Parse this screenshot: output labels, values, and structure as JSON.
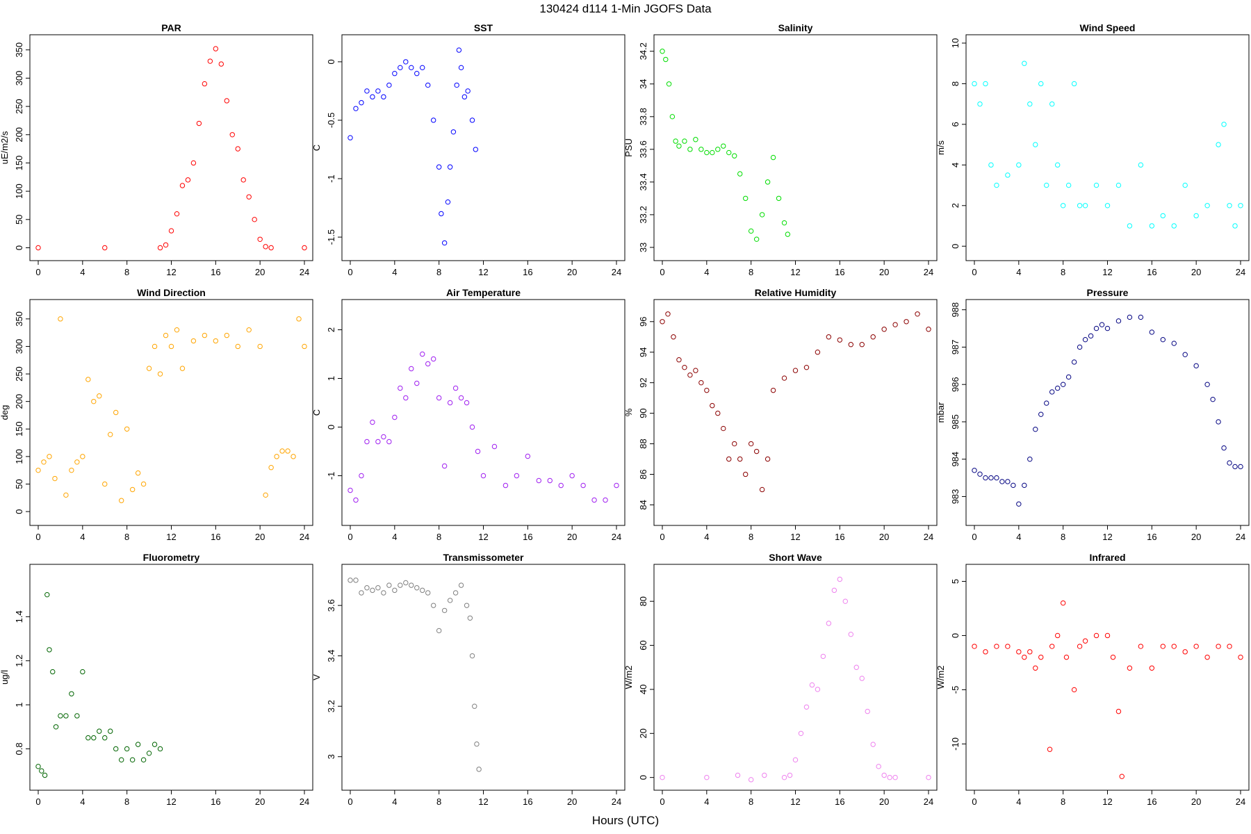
{
  "figure": {
    "title": "130424   d114   1-Min  JGOFS Data",
    "xlabel": "Hours (UTC)"
  },
  "chart_data": [
    {
      "type": "scatter",
      "title": "PAR",
      "ylabel": "uE/m2/s",
      "color": "#ff0000",
      "xlim": [
        0,
        24
      ],
      "ylim": [
        -8,
        362
      ],
      "xticks": [
        0,
        4,
        8,
        12,
        16,
        20,
        24
      ],
      "yticks": [
        0,
        50,
        100,
        150,
        200,
        250,
        300,
        350
      ],
      "x": [
        0,
        6,
        11,
        11.5,
        12,
        12.5,
        13,
        13.5,
        14,
        14.5,
        15,
        15.5,
        16,
        16.5,
        17,
        17.5,
        18,
        18.5,
        19,
        19.5,
        20,
        20.5,
        21,
        24
      ],
      "y": [
        0,
        0,
        0,
        5,
        30,
        60,
        110,
        120,
        150,
        220,
        290,
        330,
        352,
        325,
        260,
        200,
        175,
        120,
        90,
        50,
        15,
        2,
        0,
        0
      ]
    },
    {
      "type": "scatter",
      "title": "SST",
      "ylabel": "C",
      "color": "#0000ff",
      "xlim": [
        0,
        24
      ],
      "ylim": [
        -1.63,
        0.16
      ],
      "xticks": [
        0,
        4,
        8,
        12,
        16,
        20,
        24
      ],
      "yticks": [
        -1.5,
        -1.0,
        -0.5,
        0.0
      ],
      "x": [
        0,
        0.5,
        1,
        1.5,
        2,
        2.5,
        3,
        3.5,
        4,
        4.5,
        5,
        5.5,
        6,
        6.5,
        7,
        7.5,
        8,
        8.2,
        8.5,
        8.8,
        9,
        9.3,
        9.6,
        9.8,
        10,
        10.3,
        10.6,
        11,
        11.3
      ],
      "y": [
        -0.65,
        -0.4,
        -0.35,
        -0.25,
        -0.3,
        -0.25,
        -0.3,
        -0.2,
        -0.1,
        -0.05,
        0.0,
        -0.05,
        -0.1,
        -0.05,
        -0.2,
        -0.5,
        -0.9,
        -1.3,
        -1.55,
        -1.2,
        -0.9,
        -0.6,
        -0.2,
        0.1,
        -0.05,
        -0.3,
        -0.25,
        -0.5,
        -0.75
      ]
    },
    {
      "type": "scatter",
      "title": "Salinity",
      "ylabel": "PSU",
      "color": "#00dd00",
      "xlim": [
        0,
        24
      ],
      "ylim": [
        32.97,
        34.25
      ],
      "xticks": [
        0,
        4,
        8,
        12,
        16,
        20,
        24
      ],
      "yticks": [
        33.0,
        33.2,
        33.4,
        33.6,
        33.8,
        34.0,
        34.2
      ],
      "x": [
        0,
        0.3,
        0.6,
        0.9,
        1.2,
        1.5,
        2,
        2.5,
        3,
        3.5,
        4,
        4.5,
        5,
        5.5,
        6,
        6.5,
        7,
        7.5,
        8,
        8.5,
        9,
        9.5,
        10,
        10.5,
        11,
        11.3
      ],
      "y": [
        34.2,
        34.15,
        34.0,
        33.8,
        33.65,
        33.62,
        33.65,
        33.6,
        33.66,
        33.6,
        33.58,
        33.58,
        33.6,
        33.62,
        33.58,
        33.56,
        33.45,
        33.3,
        33.1,
        33.05,
        33.2,
        33.4,
        33.55,
        33.3,
        33.15,
        33.08
      ]
    },
    {
      "type": "scatter",
      "title": "Wind Speed",
      "ylabel": "m/s",
      "color": "#00ffff",
      "xlim": [
        0,
        24
      ],
      "ylim": [
        -0.3,
        10
      ],
      "xticks": [
        0,
        4,
        8,
        12,
        16,
        20,
        24
      ],
      "yticks": [
        0,
        2,
        4,
        6,
        8,
        10
      ],
      "x": [
        0,
        0.5,
        1,
        1.5,
        2,
        3,
        4,
        4.5,
        5,
        5.5,
        6,
        6.5,
        7,
        7.5,
        8,
        8.5,
        9,
        9.5,
        10,
        11,
        12,
        13,
        14,
        15,
        16,
        17,
        18,
        19,
        20,
        21,
        22,
        22.5,
        23,
        23.5,
        24
      ],
      "y": [
        8,
        7,
        8,
        4,
        3,
        3.5,
        4,
        9,
        7,
        5,
        8,
        3,
        7,
        4,
        2,
        3,
        8,
        2,
        2,
        3,
        2,
        3,
        1,
        4,
        1,
        1.5,
        1,
        3,
        1.5,
        2,
        5,
        6,
        2,
        1,
        2
      ]
    },
    {
      "type": "scatter",
      "title": "Wind Direction",
      "ylabel": "deg",
      "color": "#ffa500",
      "xlim": [
        0,
        24
      ],
      "ylim": [
        -10,
        370
      ],
      "xticks": [
        0,
        4,
        8,
        12,
        16,
        20,
        24
      ],
      "yticks": [
        0,
        50,
        100,
        150,
        200,
        250,
        300,
        350
      ],
      "x": [
        0,
        0.5,
        1,
        1.5,
        2,
        2.5,
        3,
        3.5,
        4,
        4.5,
        5,
        5.5,
        6,
        6.5,
        7,
        7.5,
        8,
        8.5,
        9,
        9.5,
        10,
        10.5,
        11,
        11.5,
        12,
        12.5,
        13,
        14,
        15,
        16,
        17,
        18,
        19,
        20,
        20.5,
        21,
        21.5,
        22,
        22.5,
        23,
        23.5,
        24
      ],
      "y": [
        75,
        90,
        100,
        60,
        350,
        30,
        75,
        90,
        100,
        240,
        200,
        210,
        50,
        140,
        180,
        20,
        150,
        40,
        70,
        50,
        260,
        300,
        250,
        320,
        300,
        330,
        260,
        310,
        320,
        310,
        320,
        300,
        330,
        300,
        30,
        80,
        100,
        110,
        110,
        100,
        350,
        300
      ]
    },
    {
      "type": "scatter",
      "title": "Air Temperature",
      "ylabel": "C",
      "color": "#a020f0",
      "xlim": [
        0,
        24
      ],
      "ylim": [
        -1.85,
        2.45
      ],
      "xticks": [
        0,
        4,
        8,
        12,
        16,
        20,
        24
      ],
      "yticks": [
        -1,
        0,
        1,
        2
      ],
      "x": [
        0,
        0.5,
        1,
        1.5,
        2,
        2.5,
        3,
        3.5,
        4,
        4.5,
        5,
        5.5,
        6,
        6.5,
        7,
        7.5,
        8,
        8.5,
        9,
        9.5,
        10,
        10.5,
        11,
        11.5,
        12,
        13,
        14,
        15,
        16,
        17,
        18,
        19,
        20,
        21,
        22,
        23,
        24
      ],
      "y": [
        -1.3,
        -1.5,
        -1.0,
        -0.3,
        0.1,
        -0.3,
        -0.2,
        -0.3,
        0.2,
        0.8,
        0.6,
        1.2,
        0.9,
        1.5,
        1.3,
        1.4,
        0.6,
        -0.8,
        0.5,
        0.8,
        0.6,
        0.5,
        0.0,
        -0.5,
        -1.0,
        -0.4,
        -1.2,
        -1.0,
        -0.6,
        -1.1,
        -1.1,
        -1.2,
        -1.0,
        -1.2,
        -1.5,
        -1.5,
        -1.2
      ]
    },
    {
      "type": "scatter",
      "title": "Relative Humidity",
      "ylabel": "%",
      "color": "#8b0000",
      "xlim": [
        0,
        24
      ],
      "ylim": [
        83.2,
        96.9
      ],
      "xticks": [
        0,
        4,
        8,
        12,
        16,
        20,
        24
      ],
      "yticks": [
        84,
        86,
        88,
        90,
        92,
        94,
        96
      ],
      "x": [
        0,
        0.5,
        1,
        1.5,
        2,
        2.5,
        3,
        3.5,
        4,
        4.5,
        5,
        5.5,
        6,
        6.5,
        7,
        7.5,
        8,
        8.5,
        9,
        9.5,
        10,
        11,
        12,
        13,
        14,
        15,
        16,
        17,
        18,
        19,
        20,
        21,
        22,
        23,
        24
      ],
      "y": [
        96,
        96.5,
        95,
        93.5,
        93,
        92.5,
        92.8,
        92,
        91.5,
        90.5,
        90,
        89,
        87,
        88,
        87,
        86,
        88,
        87.5,
        85,
        87,
        91.5,
        92.3,
        92.8,
        93,
        94,
        95,
        94.8,
        94.5,
        94.5,
        95,
        95.5,
        95.8,
        96,
        96.5,
        95.5
      ]
    },
    {
      "type": "scatter",
      "title": "Pressure",
      "ylabel": "mbar",
      "color": "#000080",
      "xlim": [
        0,
        24
      ],
      "ylim": [
        982.45,
        988.05
      ],
      "xticks": [
        0,
        4,
        8,
        12,
        16,
        20,
        24
      ],
      "yticks": [
        983,
        984,
        985,
        986,
        987,
        988
      ],
      "x": [
        0,
        0.5,
        1,
        1.5,
        2,
        2.5,
        3,
        3.5,
        4,
        4.5,
        5,
        5.5,
        6,
        6.5,
        7,
        7.5,
        8,
        8.5,
        9,
        9.5,
        10,
        10.5,
        11,
        11.5,
        12,
        13,
        14,
        15,
        16,
        17,
        18,
        19,
        20,
        21,
        21.5,
        22,
        22.5,
        23,
        23.5,
        24
      ],
      "y": [
        983.7,
        983.6,
        983.5,
        983.5,
        983.5,
        983.4,
        983.4,
        983.3,
        982.8,
        983.3,
        984.0,
        984.8,
        985.2,
        985.5,
        985.8,
        985.9,
        986.0,
        986.2,
        986.6,
        987.0,
        987.2,
        987.3,
        987.5,
        987.6,
        987.5,
        987.7,
        987.8,
        987.8,
        987.4,
        987.2,
        987.1,
        986.8,
        986.5,
        986.0,
        985.6,
        985.0,
        984.3,
        983.9,
        983.8,
        983.8
      ]
    },
    {
      "type": "scatter",
      "title": "Fluorometry",
      "ylabel": "ug/l",
      "color": "#006400",
      "xlim": [
        0,
        24
      ],
      "ylim": [
        0.65,
        1.6
      ],
      "xticks": [
        0,
        4,
        8,
        12,
        16,
        20,
        24
      ],
      "yticks": [
        0.8,
        1.0,
        1.2,
        1.4
      ],
      "x": [
        0,
        0.3,
        0.6,
        0.8,
        1,
        1.3,
        1.6,
        2,
        2.5,
        3,
        3.5,
        4,
        4.5,
        5,
        5.5,
        6,
        6.5,
        7,
        7.5,
        8,
        8.5,
        9,
        9.5,
        10,
        10.5,
        11
      ],
      "y": [
        0.72,
        0.7,
        0.68,
        1.5,
        1.25,
        1.15,
        0.9,
        0.95,
        0.95,
        1.05,
        0.95,
        1.15,
        0.85,
        0.85,
        0.88,
        0.85,
        0.88,
        0.8,
        0.75,
        0.8,
        0.75,
        0.82,
        0.75,
        0.78,
        0.82,
        0.8
      ]
    },
    {
      "type": "scatter",
      "title": "Transmissometer",
      "ylabel": "V",
      "color": "#808080",
      "xlim": [
        0,
        24
      ],
      "ylim": [
        2.9,
        3.73
      ],
      "xticks": [
        0,
        4,
        8,
        12,
        16,
        20,
        24
      ],
      "yticks": [
        3.0,
        3.2,
        3.4,
        3.6
      ],
      "x": [
        0,
        0.5,
        1,
        1.5,
        2,
        2.5,
        3,
        3.5,
        4,
        4.5,
        5,
        5.5,
        6,
        6.5,
        7,
        7.5,
        8,
        8.5,
        9,
        9.5,
        10,
        10.5,
        10.8,
        11,
        11.2,
        11.4,
        11.6
      ],
      "y": [
        3.7,
        3.7,
        3.65,
        3.67,
        3.66,
        3.67,
        3.65,
        3.68,
        3.66,
        3.68,
        3.69,
        3.68,
        3.67,
        3.66,
        3.65,
        3.6,
        3.5,
        3.58,
        3.62,
        3.65,
        3.68,
        3.6,
        3.55,
        3.4,
        3.2,
        3.05,
        2.95
      ]
    },
    {
      "type": "scatter",
      "title": "Short Wave",
      "ylabel": "W/m2",
      "color": "#ee82ee",
      "xlim": [
        0,
        24
      ],
      "ylim": [
        -2,
        93
      ],
      "xticks": [
        0,
        4,
        8,
        12,
        16,
        20,
        24
      ],
      "yticks": [
        0,
        20,
        40,
        60,
        80
      ],
      "x": [
        0,
        4,
        6.8,
        8,
        9.2,
        11,
        11.5,
        12,
        12.5,
        13,
        13.5,
        14,
        14.5,
        15,
        15.5,
        16,
        16.5,
        17,
        17.5,
        18,
        18.5,
        19,
        19.5,
        20,
        20.5,
        21,
        24
      ],
      "y": [
        0,
        0,
        1,
        -1,
        1,
        0,
        1,
        8,
        20,
        32,
        42,
        40,
        55,
        70,
        85,
        90,
        80,
        65,
        50,
        45,
        30,
        15,
        5,
        1,
        0,
        0,
        0
      ]
    },
    {
      "type": "scatter",
      "title": "Infrared",
      "ylabel": "W/m2",
      "color": "#ff0000",
      "xlim": [
        0,
        24
      ],
      "ylim": [
        -13.5,
        5.8
      ],
      "xticks": [
        0,
        4,
        8,
        12,
        16,
        20,
        24
      ],
      "yticks": [
        -10,
        -5,
        0,
        5
      ],
      "x": [
        0,
        1,
        2,
        3,
        4,
        4.5,
        5,
        5.5,
        6,
        6.8,
        7,
        7.5,
        8,
        8.3,
        9,
        9.5,
        10,
        11,
        12,
        12.5,
        13,
        13.3,
        14,
        15,
        16,
        17,
        18,
        19,
        20,
        21,
        22,
        23,
        24
      ],
      "y": [
        -1,
        -1.5,
        -1,
        -1,
        -1.5,
        -2,
        -1.5,
        -3,
        -2,
        -10.5,
        -1,
        0,
        3,
        -2,
        -5,
        -1,
        -0.5,
        0,
        0,
        -2,
        -7,
        -13,
        -3,
        -1,
        -3,
        -1,
        -1,
        -1.5,
        -1,
        -2,
        -1,
        -1,
        -2
      ]
    }
  ]
}
